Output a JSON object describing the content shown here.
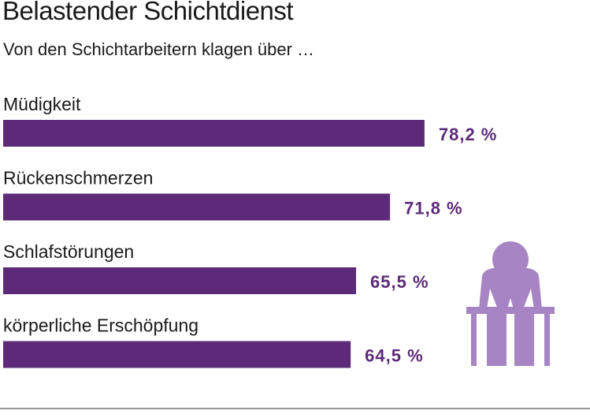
{
  "colors": {
    "bar": "#5c2a78",
    "figure": "#a784c4",
    "text": "#1a1a1a",
    "baseline": "#777777"
  },
  "icon": "person-sitting-exhausted-icon",
  "chart_data": {
    "type": "bar",
    "orientation": "horizontal",
    "title": "Belastender Schichtdienst",
    "subtitle": "Von den Schichtarbeitern klagen über …",
    "categories": [
      "Müdigkeit",
      "Rückenschmerzen",
      "Schlafstörungen",
      "körperliche Erschöpfung"
    ],
    "values": [
      78.2,
      71.8,
      65.5,
      64.5
    ],
    "value_labels": [
      "78,2 %",
      "71,8 %",
      "65,5 %",
      "64,5 %"
    ],
    "unit": "%",
    "xlim": [
      0,
      100
    ],
    "xlabel": "",
    "ylabel": "",
    "grid": false,
    "legend": "none"
  }
}
